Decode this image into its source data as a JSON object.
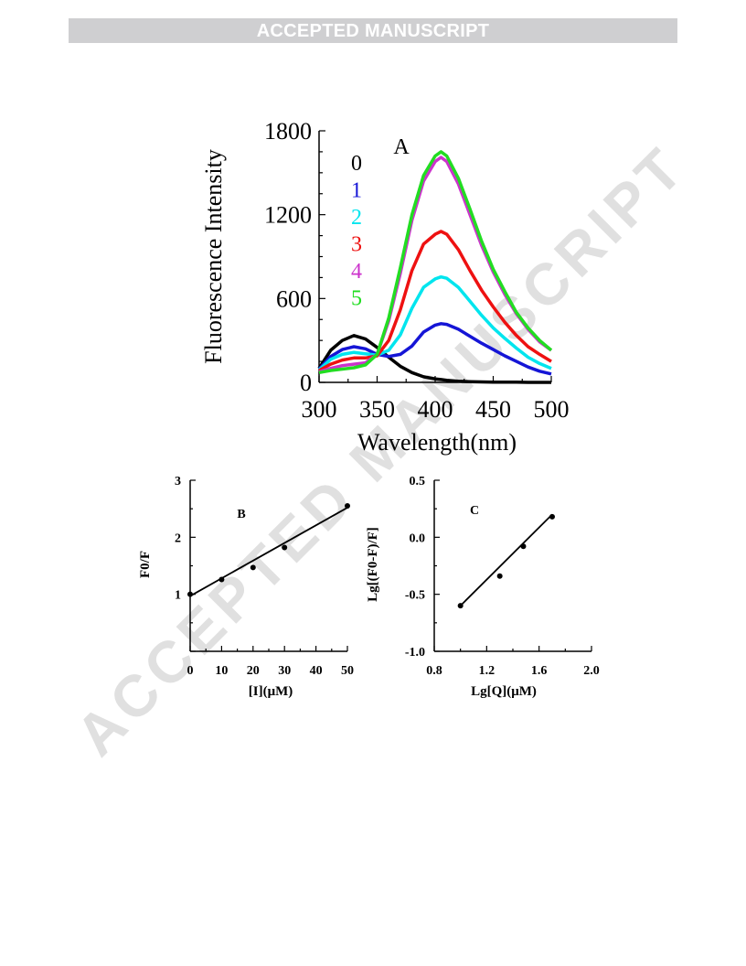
{
  "header": {
    "banner_text": "ACCEPTED MANUSCRIPT"
  },
  "watermark": {
    "text": "ACCEPTED MANUSCRIPT",
    "color": "#e0e0e0"
  },
  "chart_data": [
    {
      "panel": "A",
      "type": "line",
      "label": "A",
      "xlabel": "Wavelength(nm)",
      "ylabel": "Fluorescence Intensity",
      "xlim": [
        300,
        500
      ],
      "ylim": [
        0,
        1800
      ],
      "xticks": [
        300,
        350,
        400,
        450,
        500
      ],
      "yticks": [
        0,
        600,
        1200,
        1800
      ],
      "x": [
        300,
        310,
        320,
        330,
        340,
        350,
        360,
        370,
        380,
        390,
        400,
        405,
        410,
        420,
        430,
        440,
        450,
        460,
        470,
        480,
        490,
        500
      ],
      "series": [
        {
          "name": "0",
          "color": "#000000",
          "values": [
            100,
            230,
            300,
            335,
            310,
            250,
            180,
            115,
            70,
            40,
            25,
            20,
            15,
            8,
            5,
            3,
            2,
            1,
            1,
            0,
            0,
            0
          ]
        },
        {
          "name": "1",
          "color": "#1515d6",
          "values": [
            95,
            185,
            235,
            255,
            240,
            200,
            185,
            200,
            260,
            360,
            410,
            420,
            415,
            380,
            330,
            280,
            235,
            190,
            150,
            110,
            80,
            60
          ]
        },
        {
          "name": "2",
          "color": "#00e5ee",
          "values": [
            90,
            165,
            200,
            215,
            205,
            195,
            230,
            340,
            530,
            680,
            740,
            755,
            745,
            680,
            580,
            480,
            390,
            315,
            245,
            180,
            135,
            100
          ]
        },
        {
          "name": "3",
          "color": "#ee1111",
          "values": [
            85,
            130,
            160,
            175,
            175,
            190,
            300,
            520,
            800,
            990,
            1060,
            1080,
            1060,
            950,
            800,
            660,
            540,
            430,
            335,
            255,
            200,
            150
          ]
        },
        {
          "name": "4",
          "color": "#cc33cc",
          "values": [
            75,
            100,
            120,
            130,
            140,
            200,
            440,
            780,
            1160,
            1440,
            1580,
            1610,
            1580,
            1420,
            1200,
            980,
            790,
            630,
            490,
            380,
            290,
            230
          ]
        },
        {
          "name": "5",
          "color": "#22dd22",
          "values": [
            70,
            85,
            95,
            105,
            125,
            200,
            460,
            820,
            1200,
            1480,
            1620,
            1650,
            1620,
            1460,
            1240,
            1010,
            810,
            650,
            500,
            390,
            300,
            230
          ]
        }
      ]
    },
    {
      "panel": "B",
      "type": "scatter",
      "label": "B",
      "xlabel": "[I](μM)",
      "ylabel": "F0/F",
      "xlim": [
        0,
        50
      ],
      "ylim": [
        0,
        3
      ],
      "xticks": [
        0,
        10,
        20,
        30,
        40,
        50
      ],
      "yticks": [
        1,
        2,
        3
      ],
      "x": [
        0,
        10,
        20,
        30,
        50
      ],
      "y": [
        1.0,
        1.26,
        1.47,
        1.82,
        2.55
      ],
      "fit_line": {
        "x": [
          0,
          50
        ],
        "y": [
          0.97,
          2.52
        ]
      }
    },
    {
      "panel": "C",
      "type": "scatter",
      "label": "C",
      "xlabel": "Lg[Q](μM)",
      "ylabel": "Lg[(F0-F)/F]",
      "xlim": [
        0.8,
        2.0
      ],
      "ylim": [
        -1.0,
        0.5
      ],
      "xticks": [
        "0.8",
        "1.2",
        "1.6",
        "2.0"
      ],
      "yticks": [
        "0.5",
        "0.0",
        "-0.5",
        "-1.0"
      ],
      "x": [
        1.0,
        1.3,
        1.48,
        1.7
      ],
      "y": [
        -0.6,
        -0.34,
        -0.08,
        0.18
      ],
      "fit_line": {
        "x": [
          1.0,
          1.7
        ],
        "y": [
          -0.6,
          0.2
        ]
      }
    }
  ]
}
